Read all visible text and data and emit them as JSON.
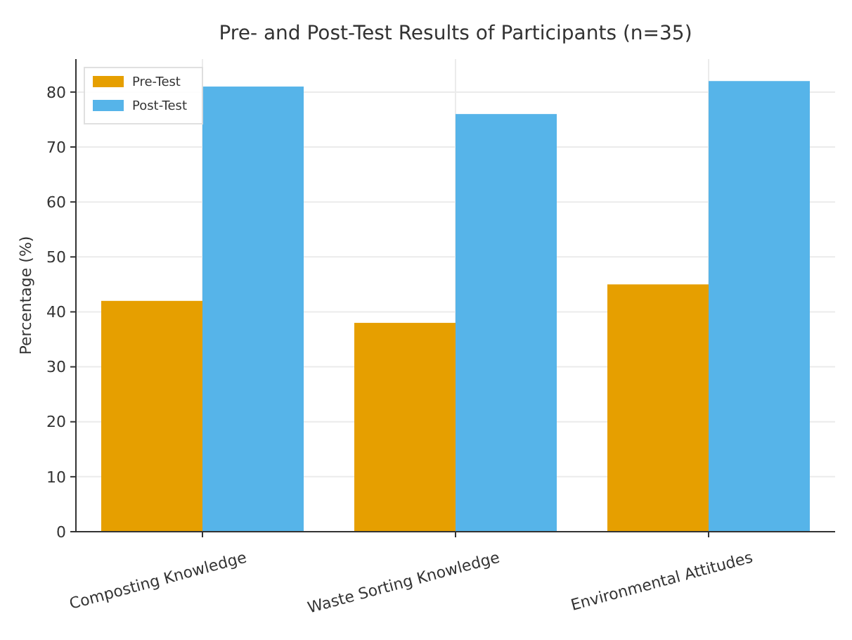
{
  "chart_data": {
    "type": "bar",
    "title": "Pre- and Post-Test Results of Participants (n=35)",
    "ylabel": "Percentage (%)",
    "categories": [
      "Composting Knowledge",
      "Waste Sorting Knowledge",
      "Environmental Attitudes"
    ],
    "series": [
      {
        "name": "Pre-Test",
        "color": "#e69f00",
        "values": [
          42,
          38,
          45
        ]
      },
      {
        "name": "Post-Test",
        "color": "#56b4e9",
        "values": [
          81,
          76,
          82
        ]
      }
    ],
    "ylim": [
      0,
      86
    ],
    "yticks": [
      0,
      10,
      20,
      30,
      40,
      50,
      60,
      70,
      80
    ],
    "grid": true,
    "legend": "top left"
  }
}
